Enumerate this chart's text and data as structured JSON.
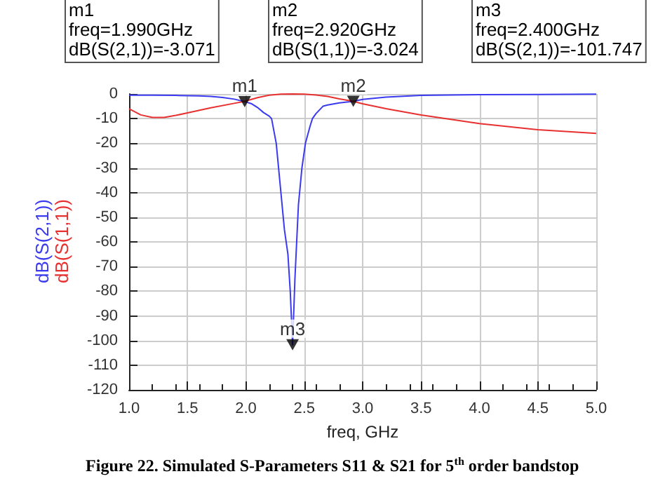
{
  "chart_data": {
    "type": "line",
    "xlabel": "freq, GHz",
    "xlim": [
      1.0,
      5.0
    ],
    "xticks": [
      {
        "value": 1,
        "label": "1.0"
      },
      {
        "value": 1.5,
        "label": "1.5"
      },
      {
        "value": 2,
        "label": "2.0"
      },
      {
        "value": 2.5,
        "label": "2.5"
      },
      {
        "value": 3,
        "label": "3.0"
      },
      {
        "value": 3.5,
        "label": "3.5"
      },
      {
        "value": 4,
        "label": "4.0"
      },
      {
        "value": 4.5,
        "label": "4.5"
      },
      {
        "value": 5,
        "label": "5.0"
      }
    ],
    "ylim": [
      -120,
      0
    ],
    "yticks": [
      -120,
      -110,
      -100,
      -90,
      -80,
      -70,
      -60,
      -50,
      -40,
      -30,
      -20,
      -10,
      0
    ],
    "grid": true,
    "marker": "none",
    "line_style": "solid",
    "series": [
      {
        "name": "dB(S(2,1))",
        "color": "#3a3af0",
        "x": [
          1.0,
          1.2,
          1.4,
          1.6,
          1.7,
          1.8,
          1.9,
          1.99,
          2.05,
          2.1,
          2.15,
          2.2,
          2.22,
          2.26,
          2.3,
          2.33,
          2.36,
          2.38,
          2.4,
          2.42,
          2.45,
          2.48,
          2.51,
          2.55,
          2.57,
          2.6,
          2.66,
          2.7,
          2.8,
          2.92,
          3.0,
          3.2,
          3.5,
          4.0,
          4.5,
          5.0
        ],
        "values": [
          -0.5,
          -0.5,
          -0.6,
          -0.8,
          -1.0,
          -1.4,
          -2.1,
          -3.1,
          -4,
          -5.5,
          -7.5,
          -9,
          -10,
          -20,
          -40,
          -55,
          -65,
          -80,
          -101.7,
          -75,
          -45,
          -30,
          -20,
          -13,
          -10,
          -8,
          -5,
          -4.5,
          -3.6,
          -3.0,
          -2.2,
          -1.3,
          -0.6,
          -0.3,
          -0.2,
          -0.1
        ]
      },
      {
        "name": "dB(S(1,1))",
        "color": "#e83030",
        "x": [
          1.0,
          1.1,
          1.2,
          1.3,
          1.4,
          1.5,
          1.7,
          1.9,
          1.99,
          2.1,
          2.2,
          2.3,
          2.4,
          2.5,
          2.6,
          2.7,
          2.8,
          2.92,
          3.0,
          3.2,
          3.5,
          4.0,
          4.5,
          5.0
        ],
        "values": [
          -6,
          -8.5,
          -9.5,
          -9.5,
          -8.7,
          -7.7,
          -5.6,
          -3.8,
          -3.0,
          -1.5,
          -0.5,
          -0.1,
          0,
          -0.1,
          -0.4,
          -1,
          -2,
          -3.0,
          -4,
          -6,
          -8.5,
          -12,
          -14.5,
          -16
        ]
      },
      {
        "type": "scatter",
        "marker": "triangle",
        "color": "#000000",
        "x": [
          1.99,
          2.92,
          2.4
        ],
        "values": [
          -3.1,
          -3.0,
          -101.7
        ]
      }
    ],
    "annotations": [
      "m1\nfreq=1.990GHz\ndB(S(2,1))=-3.071",
      "m2\nfreq=2.920GHz\ndB(S(1,1))=-3.024",
      "m3\nfreq=2.400GHz\ndB(S(2,1))=-101.747",
      {
        "text": "m1",
        "x": 1.99,
        "y": -3.071
      },
      {
        "text": "m2",
        "x": 2.92,
        "y": -3.024
      },
      {
        "text": "m3",
        "x": 2.4,
        "y": -101.747
      },
      "Figure 22. Simulated S-Parameters S11 & S21 for 5$^{th}$ order bandstop"
    ]
  }
}
